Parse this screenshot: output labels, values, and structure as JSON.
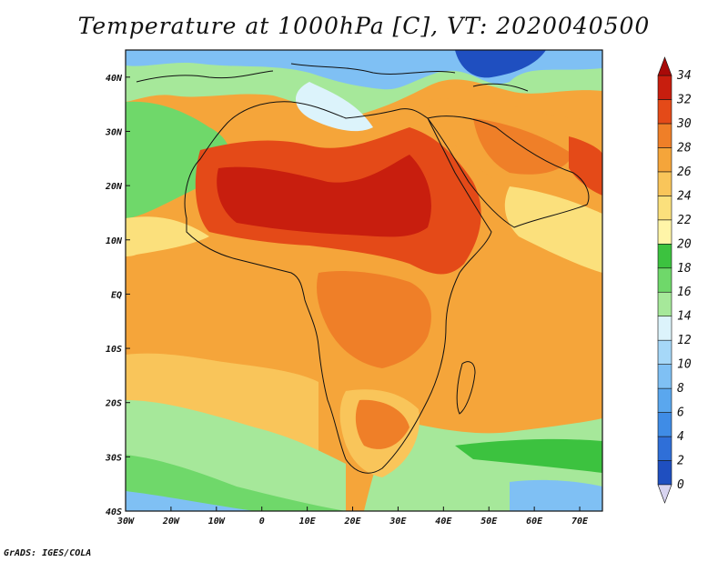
{
  "title": "Temperature at 1000hPa [C], VT: 2020040500",
  "footer": "GrADS: IGES/COLA",
  "map": {
    "type": "filled-contour",
    "variable": "Temperature at 1000hPa",
    "units": "C",
    "valid_time": "2020040500",
    "lon_range": [
      -30,
      75
    ],
    "lat_range": [
      -40,
      45
    ],
    "x_ticks": [
      {
        "lon": -30,
        "label": "30W"
      },
      {
        "lon": -20,
        "label": "20W"
      },
      {
        "lon": -10,
        "label": "10W"
      },
      {
        "lon": 0,
        "label": "0"
      },
      {
        "lon": 10,
        "label": "10E"
      },
      {
        "lon": 20,
        "label": "20E"
      },
      {
        "lon": 30,
        "label": "30E"
      },
      {
        "lon": 40,
        "label": "40E"
      },
      {
        "lon": 50,
        "label": "50E"
      },
      {
        "lon": 60,
        "label": "60E"
      },
      {
        "lon": 70,
        "label": "70E"
      }
    ],
    "y_ticks": [
      {
        "lat": 40,
        "label": "40N"
      },
      {
        "lat": 30,
        "label": "30N"
      },
      {
        "lat": 20,
        "label": "20N"
      },
      {
        "lat": 10,
        "label": "10N"
      },
      {
        "lat": 0,
        "label": "EQ"
      },
      {
        "lat": -10,
        "label": "10S"
      },
      {
        "lat": -20,
        "label": "20S"
      },
      {
        "lat": -30,
        "label": "30S"
      },
      {
        "lat": -40,
        "label": "40S"
      }
    ]
  },
  "colorbar": {
    "levels": [
      0,
      2,
      4,
      6,
      8,
      10,
      12,
      14,
      16,
      18,
      20,
      22,
      24,
      26,
      28,
      30,
      32,
      34
    ],
    "colors": [
      "#1a2d8c",
      "#1f4fc0",
      "#2f6fd8",
      "#3f8ce6",
      "#5aa7ee",
      "#7fc0f4",
      "#a6d8f8",
      "#dcf3fb",
      "#a6e89a",
      "#6fd86a",
      "#3cc23f",
      "#fff5a8",
      "#fbe07c",
      "#f9c55a",
      "#f5a53a",
      "#ef7f28",
      "#e44a18",
      "#c81e0e",
      "#a80a08"
    ]
  },
  "field": [
    [
      0,
      "#3f8ce6"
    ],
    [
      1,
      "#7fc0f4"
    ],
    [
      2,
      "#a6d8f8"
    ],
    [
      3,
      "#dcf3fb"
    ],
    [
      4,
      "#a6e89a"
    ],
    [
      5,
      "#6fd86a"
    ],
    [
      6,
      "#3cc23f"
    ],
    [
      7,
      "#fff5a8"
    ],
    [
      8,
      "#fbe07c"
    ],
    [
      9,
      "#f9c55a"
    ],
    [
      10,
      "#f5a53a"
    ],
    [
      11,
      "#ef7f28"
    ],
    [
      12,
      "#e44a18"
    ],
    [
      13,
      "#c81e0e"
    ]
  ]
}
